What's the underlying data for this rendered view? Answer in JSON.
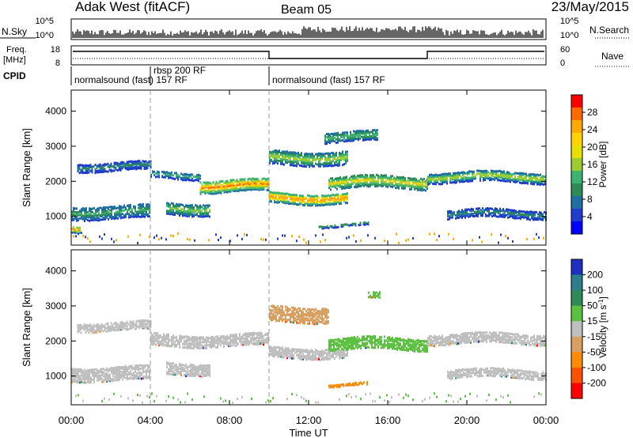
{
  "header": {
    "station": "Adak West (fitACF)",
    "beam": "Beam 05",
    "date": "23/May/2015"
  },
  "status_panels": {
    "nsky": {
      "label": "N.Sky",
      "left_ticks": [
        "10^5",
        "10^0"
      ],
      "right_ticks": [
        "10^5",
        "10^0"
      ],
      "right_label": "N.Search"
    },
    "freq": {
      "label_line1": "Freq.",
      "label_line2": "[MHz]",
      "left_ticks": [
        "18",
        "8"
      ],
      "right_ticks": [
        "60",
        "0"
      ],
      "right_label": "Nave"
    },
    "cpid": {
      "label": "CPID",
      "segments": [
        {
          "text": "normalsound (fast) 157 RF",
          "start_hour": 0,
          "end_hour": 10,
          "row": 2
        },
        {
          "text": "rbsp 200 RF",
          "start_hour": 4,
          "end_hour": 10,
          "row": 1
        },
        {
          "text": "normalsound (fast) 157 RF",
          "start_hour": 10,
          "end_hour": 24,
          "row": 2
        }
      ]
    }
  },
  "colorbars": {
    "power": {
      "label": "Power [dB]",
      "ticks": [
        "28",
        "24",
        "20",
        "16",
        "12",
        "8",
        "4"
      ],
      "colors": [
        "#ff0000",
        "#ff6a00",
        "#ffaa00",
        "#ffd200",
        "#e8e000",
        "#9acd32",
        "#3cb371",
        "#2e8b57",
        "#1f6fa0",
        "#1f3ccc",
        "#0000ff"
      ]
    },
    "velocity": {
      "label_text": "Velocity [m s",
      "label_sup": "-1",
      "label_end": "]",
      "ticks": [
        "200",
        "100",
        "50",
        "15",
        "-15",
        "-50",
        "-100",
        "-200"
      ],
      "colors": [
        "#1f2fbf",
        "#2e7d8c",
        "#2e8b57",
        "#5cc040",
        "#bfbfbf",
        "#d8a060",
        "#ff8c00",
        "#ff5000",
        "#ff0000"
      ]
    }
  },
  "x_axis": {
    "label": "Time UT",
    "tick_labels": [
      "00:00",
      "04:00",
      "08:00",
      "12:00",
      "16:00",
      "20:00",
      "00:00"
    ]
  },
  "chart_data": [
    {
      "type": "heatmap",
      "title": "Power",
      "xlabel": "Time UT",
      "ylabel": "Slant Range [km]",
      "xlim": [
        0,
        24
      ],
      "ylim": [
        180,
        4600
      ],
      "y_ticks": [
        1000,
        2000,
        3000,
        4000
      ],
      "x_ticks": [
        0,
        4,
        8,
        12,
        16,
        20,
        24
      ],
      "colorbar_label": "Power [dB]",
      "colorbar_range": [
        0,
        30
      ],
      "echo_bands": [
        {
          "t_start": 0.0,
          "t_end": 4.0,
          "range_center_km": 1150,
          "range_width_km": 380,
          "power_db": 12
        },
        {
          "t_start": 0.0,
          "t_end": 0.5,
          "range_center_km": 700,
          "range_width_km": 200,
          "power_db": 24
        },
        {
          "t_start": 0.3,
          "t_end": 4.0,
          "range_center_km": 2450,
          "range_width_km": 250,
          "power_db": 8
        },
        {
          "t_start": 4.0,
          "t_end": 6.5,
          "range_center_km": 2200,
          "range_width_km": 200,
          "power_db": 12
        },
        {
          "t_start": 4.8,
          "t_end": 7.0,
          "range_center_km": 1250,
          "range_width_km": 350,
          "power_db": 16
        },
        {
          "t_start": 6.5,
          "t_end": 10.0,
          "range_center_km": 1900,
          "range_width_km": 350,
          "power_db": 26
        },
        {
          "t_start": 10.0,
          "t_end": 14.0,
          "range_center_km": 1550,
          "range_width_km": 300,
          "power_db": 26
        },
        {
          "t_start": 10.0,
          "t_end": 14.0,
          "range_center_km": 2700,
          "range_width_km": 400,
          "power_db": 16
        },
        {
          "t_start": 12.8,
          "t_end": 15.5,
          "range_center_km": 3300,
          "range_width_km": 300,
          "power_db": 12
        },
        {
          "t_start": 13.0,
          "t_end": 18.0,
          "range_center_km": 2000,
          "range_width_km": 350,
          "power_db": 20
        },
        {
          "t_start": 12.5,
          "t_end": 15.0,
          "range_center_km": 780,
          "range_width_km": 80,
          "power_db": 8
        },
        {
          "t_start": 18.0,
          "t_end": 24.0,
          "range_center_km": 2150,
          "range_width_km": 300,
          "power_db": 16
        },
        {
          "t_start": 19.0,
          "t_end": 24.0,
          "range_center_km": 1100,
          "range_width_km": 250,
          "power_db": 8
        }
      ]
    },
    {
      "type": "heatmap",
      "title": "Velocity",
      "xlabel": "Time UT",
      "ylabel": "Slant Range [km]",
      "xlim": [
        0,
        24
      ],
      "ylim": [
        180,
        4600
      ],
      "y_ticks": [
        1000,
        2000,
        3000,
        4000
      ],
      "x_ticks": [
        0,
        4,
        8,
        12,
        16,
        20,
        24
      ],
      "colorbar_label": "Velocity [m s-1]",
      "colorbar_range": [
        -200,
        200
      ],
      "echo_bands": [
        {
          "t_start": 0.0,
          "t_end": 4.0,
          "range_center_km": 1100,
          "range_width_km": 400,
          "velocity": 0
        },
        {
          "t_start": 0.3,
          "t_end": 4.0,
          "range_center_km": 2450,
          "range_width_km": 250,
          "velocity": 0
        },
        {
          "t_start": 4.0,
          "t_end": 10.0,
          "range_center_km": 2050,
          "range_width_km": 350,
          "velocity": 0
        },
        {
          "t_start": 4.8,
          "t_end": 7.0,
          "range_center_km": 1250,
          "range_width_km": 350,
          "velocity": 0
        },
        {
          "t_start": 10.0,
          "t_end": 14.0,
          "range_center_km": 1700,
          "range_width_km": 300,
          "velocity": 0
        },
        {
          "t_start": 10.0,
          "t_end": 13.0,
          "range_center_km": 2800,
          "range_width_km": 450,
          "velocity": -30
        },
        {
          "t_start": 13.0,
          "t_end": 18.0,
          "range_center_km": 1950,
          "range_width_km": 350,
          "velocity": 30
        },
        {
          "t_start": 13.0,
          "t_end": 15.0,
          "range_center_km": 780,
          "range_width_km": 80,
          "velocity": -60
        },
        {
          "t_start": 15.0,
          "t_end": 15.6,
          "range_center_km": 3300,
          "range_width_km": 180,
          "velocity": 40
        },
        {
          "t_start": 18.0,
          "t_end": 24.0,
          "range_center_km": 2100,
          "range_width_km": 300,
          "velocity": 0
        },
        {
          "t_start": 19.0,
          "t_end": 24.0,
          "range_center_km": 1100,
          "range_width_km": 250,
          "velocity": 0
        }
      ]
    }
  ]
}
